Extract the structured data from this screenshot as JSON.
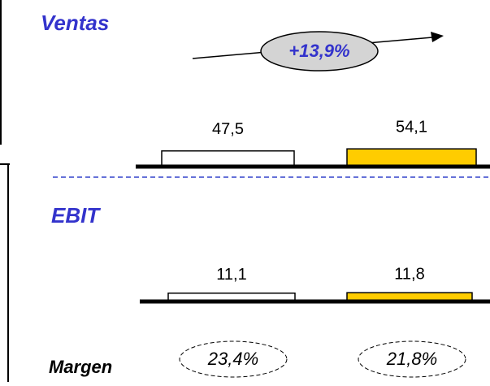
{
  "chart_data": [
    {
      "type": "bar",
      "title": "Ventas",
      "categories": [
        null,
        null
      ],
      "values": [
        47.5,
        54.1
      ],
      "value_labels": [
        "47,5",
        "54,1"
      ],
      "colors": [
        "#ffffff",
        "#ffcc00"
      ],
      "ylim": [
        0,
        130
      ],
      "annotation": "+13,9%"
    },
    {
      "type": "bar",
      "title": "EBIT",
      "categories": [
        null,
        null
      ],
      "values": [
        11.1,
        11.8
      ],
      "value_labels": [
        "11,1",
        "11,8"
      ],
      "colors": [
        "#ffffff",
        "#ffcc00"
      ],
      "ylim": [
        0,
        60
      ],
      "margin": {
        "label": "Margen",
        "values": [
          "23,4%",
          "21,8%"
        ]
      }
    }
  ]
}
